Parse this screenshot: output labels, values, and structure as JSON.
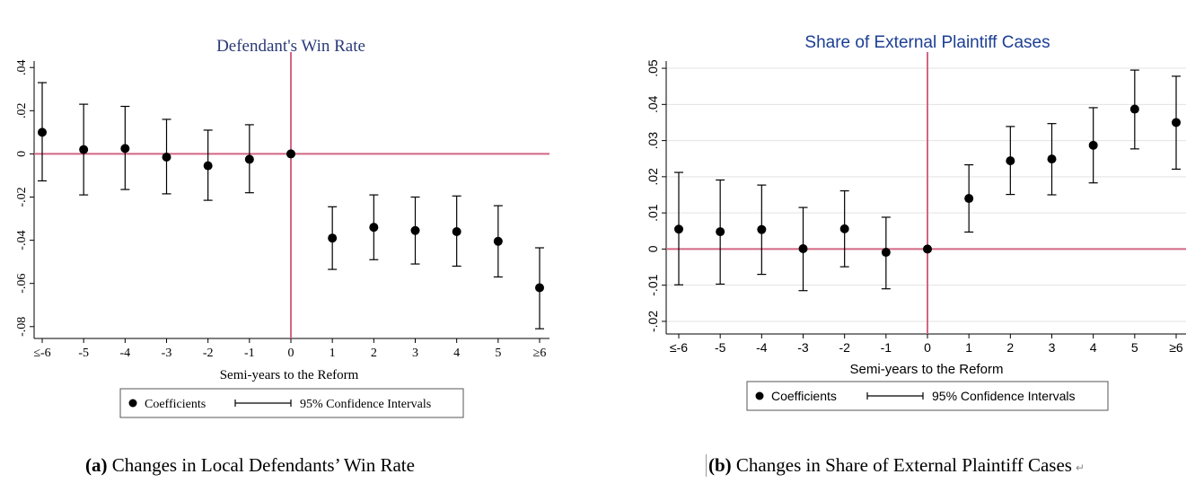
{
  "chart_data": [
    {
      "type": "scatter",
      "title": "Defendant's Win Rate",
      "xlabel": "Semi-years to the Reform",
      "ylabel": "",
      "categories": [
        "≤-6",
        "-5",
        "-4",
        "-3",
        "-2",
        "-1",
        "0",
        "1",
        "2",
        "3",
        "4",
        "5",
        "≥6"
      ],
      "yticks": [
        ".04",
        ".02",
        "0",
        "-.02",
        "-.04",
        "-.06",
        "-.08"
      ],
      "ylim": [
        -0.083,
        0.043
      ],
      "reference_lines": {
        "x": "0",
        "y": 0
      },
      "series": [
        {
          "name": "Coefficients",
          "values": [
            0.01,
            0.002,
            0.0025,
            -0.0015,
            -0.0055,
            -0.0025,
            0.0,
            -0.039,
            -0.034,
            -0.0355,
            -0.036,
            -0.0405,
            -0.062
          ]
        },
        {
          "name": "95% Confidence Intervals",
          "low": [
            -0.0125,
            -0.019,
            -0.0165,
            -0.0185,
            -0.0215,
            -0.018,
            0.0,
            -0.0535,
            -0.049,
            -0.051,
            -0.052,
            -0.057,
            -0.081
          ],
          "high": [
            0.033,
            0.023,
            0.022,
            0.016,
            0.011,
            0.0135,
            0.0,
            -0.0245,
            -0.019,
            -0.02,
            -0.0195,
            -0.024,
            -0.0435
          ]
        }
      ],
      "legend": {
        "position": "bottom",
        "items": [
          "Coefficients",
          "95% Confidence Intervals"
        ]
      },
      "grid": false,
      "colors": {
        "title": "#2b3a78",
        "reference": "#d26683",
        "marker": "#000000"
      }
    },
    {
      "type": "scatter",
      "title": "Share of External Plaintiff Cases",
      "xlabel": "Semi-years to the Reform",
      "ylabel": "",
      "categories": [
        "≤-6",
        "-5",
        "-4",
        "-3",
        "-2",
        "-1",
        "0",
        "1",
        "2",
        "3",
        "4",
        "5",
        "≥6"
      ],
      "yticks": [
        ".05",
        ".04",
        ".03",
        ".02",
        ".01",
        "0",
        "-.01",
        "-.02"
      ],
      "ylim": [
        -0.022,
        0.052
      ],
      "reference_lines": {
        "x": "0",
        "y": 0
      },
      "series": [
        {
          "name": "Coefficients",
          "values": [
            0.0055,
            0.0048,
            0.0054,
            0.0001,
            0.0056,
            -0.0009,
            0.0,
            0.014,
            0.0244,
            0.0249,
            0.0287,
            0.0387,
            0.035
          ]
        },
        {
          "name": "95% Confidence Intervals",
          "low": [
            -0.0099,
            -0.0097,
            -0.007,
            -0.0115,
            -0.0049,
            -0.011,
            0.0,
            0.0047,
            0.0151,
            0.015,
            0.0183,
            0.0277,
            0.0221
          ],
          "high": [
            0.0212,
            0.0191,
            0.0177,
            0.0115,
            0.0161,
            0.0088,
            0.0,
            0.0233,
            0.0339,
            0.0347,
            0.0391,
            0.0495,
            0.0478
          ]
        }
      ],
      "legend": {
        "position": "bottom",
        "items": [
          "Coefficients",
          "95% Confidence Intervals"
        ]
      },
      "grid": true,
      "colors": {
        "title": "#1c3f94",
        "reference": "#d26683",
        "marker": "#000000",
        "grid": "#e3e3e3"
      }
    }
  ],
  "captions": {
    "a": {
      "label": "(a)",
      "text": "Changes in Local Defendants’ Win Rate"
    },
    "b": {
      "label": "(b)",
      "text": "Changes in Share of External Plaintiff Cases",
      "mark": "↵"
    }
  }
}
